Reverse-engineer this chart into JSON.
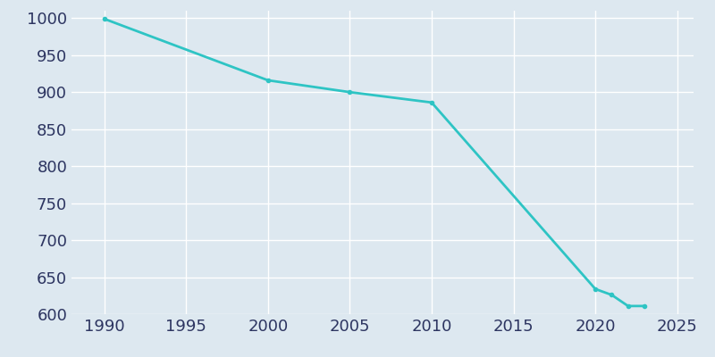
{
  "years": [
    1990,
    2000,
    2005,
    2010,
    2020,
    2021,
    2022,
    2023
  ],
  "population": [
    999,
    916,
    900,
    886,
    634,
    626,
    611,
    611
  ],
  "line_color": "#2ec4c4",
  "background_color": "#dde8f0",
  "grid_color": "#ffffff",
  "text_color": "#2d3561",
  "xlim": [
    1988,
    2026
  ],
  "ylim": [
    600,
    1010
  ],
  "xticks": [
    1990,
    1995,
    2000,
    2005,
    2010,
    2015,
    2020,
    2025
  ],
  "yticks": [
    600,
    650,
    700,
    750,
    800,
    850,
    900,
    950,
    1000
  ],
  "line_width": 2.0,
  "marker": "o",
  "marker_size": 3,
  "tick_fontsize": 13
}
